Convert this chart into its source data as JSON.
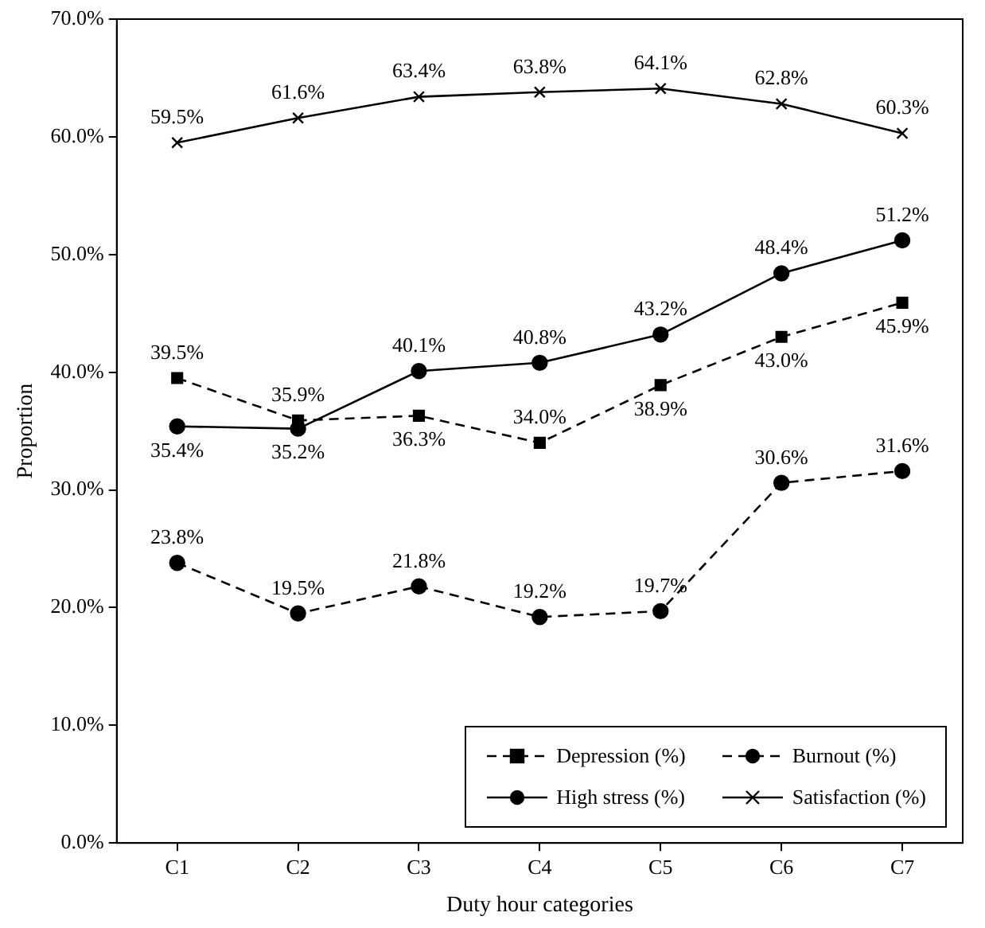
{
  "chart_data": {
    "type": "line",
    "xlabel": "Duty hour categories",
    "ylabel": "Proportion",
    "categories": [
      "C1",
      "C2",
      "C3",
      "C4",
      "C5",
      "C6",
      "C7"
    ],
    "ylim": [
      0,
      70
    ],
    "yticks": [
      {
        "value": 0,
        "label": "0.0%"
      },
      {
        "value": 10,
        "label": "10.0%"
      },
      {
        "value": 20,
        "label": "20.0%"
      },
      {
        "value": 30,
        "label": "30.0%"
      },
      {
        "value": 40,
        "label": "40.0%"
      },
      {
        "value": 50,
        "label": "50.0%"
      },
      {
        "value": 60,
        "label": "60.0%"
      },
      {
        "value": 70,
        "label": "70.0%"
      }
    ],
    "grid": false,
    "legend": "bottom right",
    "data_labels": true,
    "series": [
      {
        "name": "Depression (%)",
        "color": "#000000",
        "marker": "square",
        "line_style": "dashed",
        "values": [
          39.5,
          35.9,
          36.3,
          34.0,
          38.9,
          43.0,
          45.9
        ],
        "value_labels": [
          "39.5%",
          "35.9%",
          "36.3%",
          "34.0%",
          "38.9%",
          "43.0%",
          "45.9%"
        ]
      },
      {
        "name": "Burnout (%)",
        "color": "#000000",
        "marker": "circle",
        "line_style": "dashed",
        "values": [
          23.8,
          19.5,
          21.8,
          19.2,
          19.7,
          30.6,
          31.6
        ],
        "value_labels": [
          "23.8%",
          "19.5%",
          "21.8%",
          "19.2%",
          "19.7%",
          "30.6%",
          "31.6%"
        ]
      },
      {
        "name": "High stress (%)",
        "color": "#000000",
        "marker": "circle",
        "line_style": "solid",
        "values": [
          35.4,
          35.2,
          40.1,
          40.8,
          43.2,
          48.4,
          51.2
        ],
        "value_labels": [
          "35.4%",
          "35.2%",
          "40.1%",
          "40.8%",
          "43.2%",
          "48.4%",
          "51.2%"
        ]
      },
      {
        "name": "Satisfaction (%)",
        "color": "#000000",
        "marker": "cross",
        "line_style": "solid",
        "values": [
          59.5,
          61.6,
          63.4,
          63.8,
          64.1,
          62.8,
          60.3
        ],
        "value_labels": [
          "59.5%",
          "61.6%",
          "63.4%",
          "63.8%",
          "64.1%",
          "62.8%",
          "60.3%"
        ]
      }
    ]
  }
}
